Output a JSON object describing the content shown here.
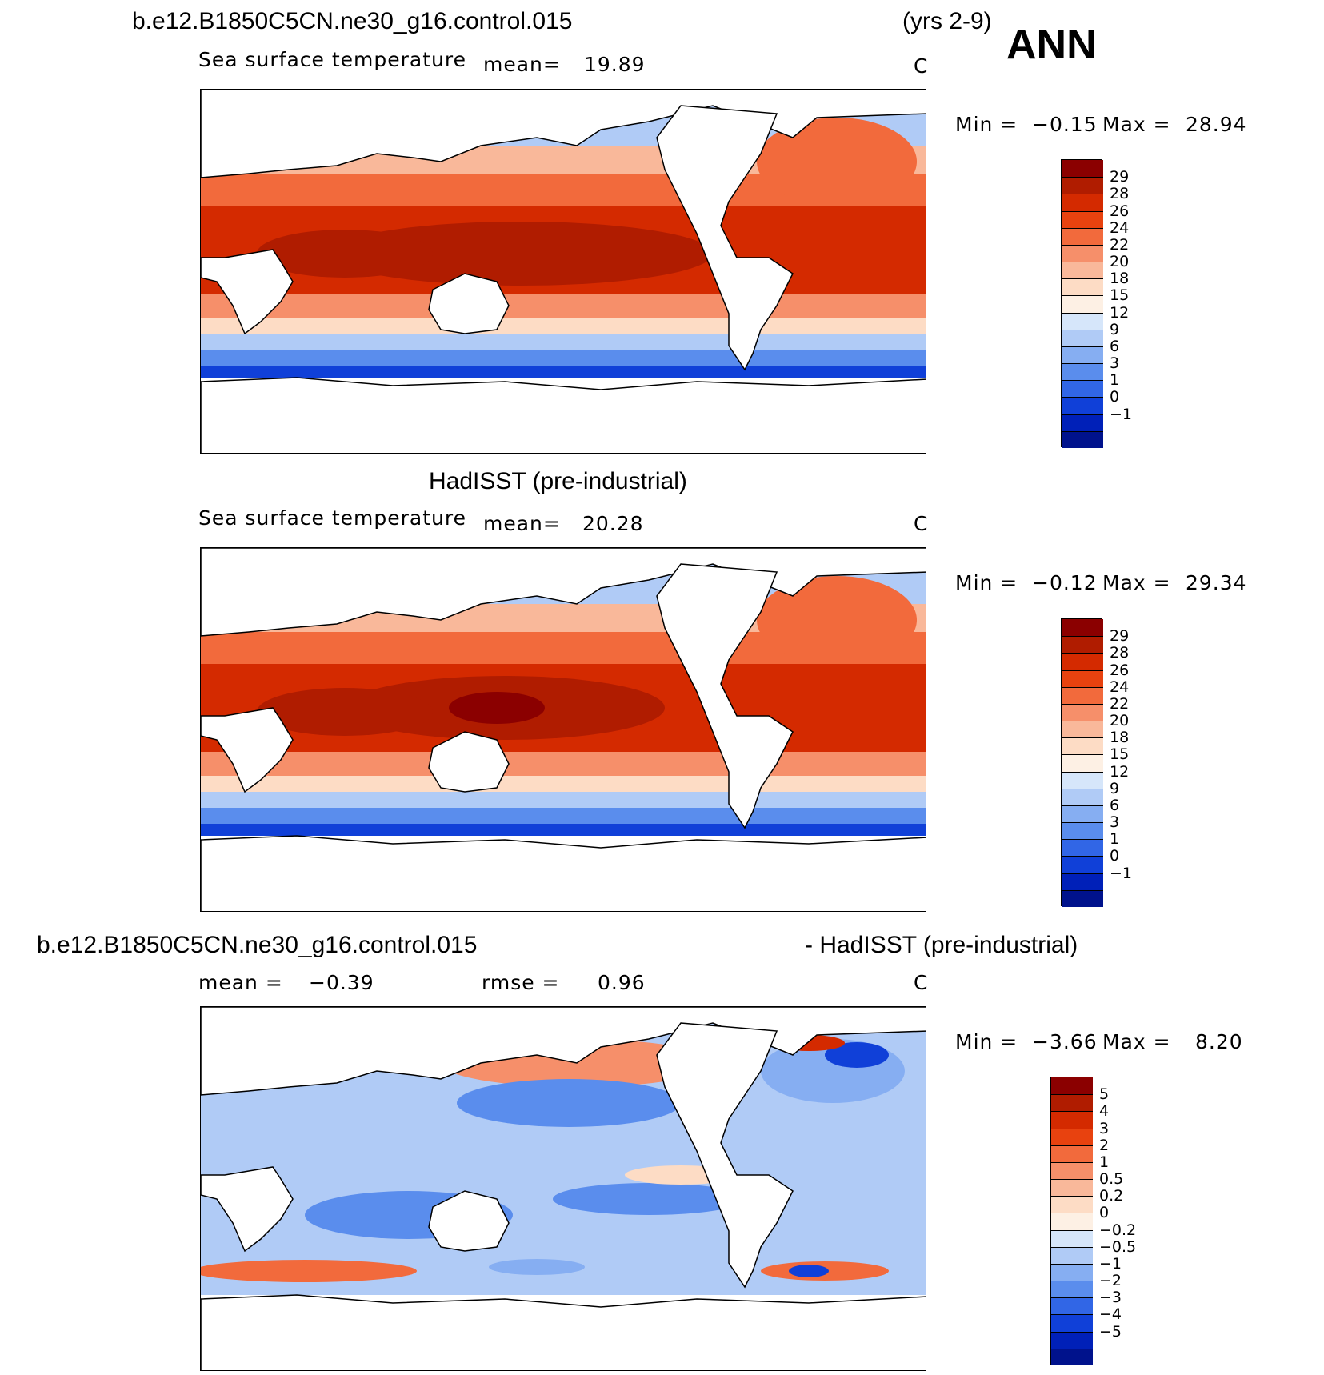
{
  "panel1": {
    "case": "b.e12.B1850C5CN.ne30_g16.control.015",
    "years": "(yrs 2-9)",
    "season": "ANN",
    "variable": "Sea surface temperature",
    "mean_label": "mean=",
    "mean_value": "19.89",
    "units": "C",
    "min_label": "Min =",
    "min_value": "−0.15",
    "max_label": "Max =",
    "max_value": "28.94"
  },
  "panel2": {
    "case": "HadISST (pre-industrial)",
    "variable": "Sea surface temperature",
    "mean_label": "mean=",
    "mean_value": "20.28",
    "units": "C",
    "min_label": "Min =",
    "min_value": "−0.12",
    "max_label": "Max =",
    "max_value": "29.34"
  },
  "panel3": {
    "case": "b.e12.B1850C5CN.ne30_g16.control.015",
    "minus_case": "- HadISST (pre-industrial)",
    "mean_label": "mean =",
    "mean_value": "−0.39",
    "rmse_label": "rmse =",
    "rmse_value": "0.96",
    "units": "C",
    "min_label": "Min =",
    "min_value": "−3.66",
    "max_label": "Max =",
    "max_value": "8.20"
  },
  "colorbar_sst": {
    "labels": [
      "29",
      "28",
      "26",
      "24",
      "22",
      "20",
      "18",
      "15",
      "12",
      "9",
      "6",
      "3",
      "1",
      "0",
      "−1"
    ],
    "colors": [
      "#8b0000",
      "#b01c00",
      "#d42a00",
      "#e8420f",
      "#f26a3c",
      "#f68f6a",
      "#f9b89a",
      "#fddcc5",
      "#fdf0e4",
      "#d6e6fa",
      "#b0cbf6",
      "#86aef2",
      "#5a8ded",
      "#3166e6",
      "#1040d8",
      "#0020b8",
      "#00128c"
    ]
  },
  "colorbar_diff": {
    "labels": [
      "5",
      "4",
      "3",
      "2",
      "1",
      "0.5",
      "0.2",
      "0",
      "−0.2",
      "−0.5",
      "−1",
      "−2",
      "−3",
      "−4",
      "−5"
    ],
    "colors": [
      "#8b0000",
      "#b01c00",
      "#d42a00",
      "#e8420f",
      "#f26a3c",
      "#f68f6a",
      "#f9b89a",
      "#fddcc5",
      "#fdf0e4",
      "#d6e6fa",
      "#b0cbf6",
      "#86aef2",
      "#5a8ded",
      "#3166e6",
      "#1040d8",
      "#0020b8",
      "#00128c"
    ]
  }
}
